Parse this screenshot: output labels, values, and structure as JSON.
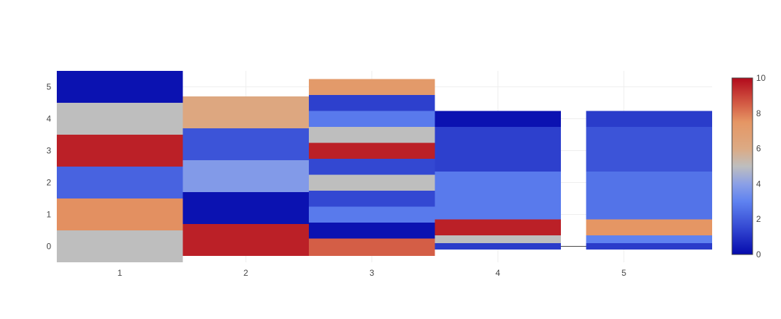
{
  "chart_data": {
    "type": "heatmap",
    "colorscale": "coolwarm",
    "zmin": 0,
    "zmax": 10,
    "x_ticks": [
      "1",
      "2",
      "3",
      "4",
      "5"
    ],
    "y_ticks": [
      "0",
      "1",
      "2",
      "3",
      "4",
      "5"
    ],
    "colorbar_ticks": [
      "0",
      "2",
      "4",
      "6",
      "8",
      "10"
    ],
    "grid": true,
    "columns": [
      {
        "x": 1,
        "x_left": 0.5,
        "x_right": 1.5,
        "cells": [
          {
            "y0": -0.5,
            "y1": 0.5,
            "z": 5
          },
          {
            "y0": 0.5,
            "y1": 1.5,
            "z": 7.6
          },
          {
            "y0": 1.5,
            "y1": 2.5,
            "z": 2.2
          },
          {
            "y0": 2.5,
            "y1": 3.5,
            "z": 9.6
          },
          {
            "y0": 3.5,
            "y1": 4.5,
            "z": 5
          },
          {
            "y0": 4.5,
            "y1": 5.5,
            "z": 0.2
          }
        ]
      },
      {
        "x": 2,
        "x_left": 1.5,
        "x_right": 2.5,
        "cells": [
          {
            "y0": -0.3,
            "y1": 0.7,
            "z": 9.6
          },
          {
            "y0": 0.7,
            "y1": 1.7,
            "z": 0.2
          },
          {
            "y0": 1.7,
            "y1": 2.7,
            "z": 3.8
          },
          {
            "y0": 2.7,
            "y1": 3.7,
            "z": 1.8
          },
          {
            "y0": 3.7,
            "y1": 4.7,
            "z": 6.2
          }
        ]
      },
      {
        "x": 3,
        "x_left": 2.5,
        "x_right": 3.5,
        "cells": [
          {
            "y0": -0.3,
            "y1": 0.25,
            "z": 8.5
          },
          {
            "y0": 0.25,
            "y1": 0.75,
            "z": 0.2
          },
          {
            "y0": 0.75,
            "y1": 1.25,
            "z": 2.8
          },
          {
            "y0": 1.25,
            "y1": 1.75,
            "z": 1.5
          },
          {
            "y0": 1.75,
            "y1": 2.25,
            "z": 5
          },
          {
            "y0": 2.25,
            "y1": 2.75,
            "z": 1.5
          },
          {
            "y0": 2.75,
            "y1": 3.25,
            "z": 9.6
          },
          {
            "y0": 3.25,
            "y1": 3.75,
            "z": 5
          },
          {
            "y0": 3.75,
            "y1": 4.25,
            "z": 2.8
          },
          {
            "y0": 4.25,
            "y1": 4.75,
            "z": 1.3
          },
          {
            "y0": 4.75,
            "y1": 5.25,
            "z": 7.2
          }
        ]
      },
      {
        "x": 4,
        "x_left": 3.5,
        "x_right": 4.5,
        "cells": [
          {
            "y0": -0.1,
            "y1": 0.1,
            "z": 1.2
          },
          {
            "y0": 0.1,
            "y1": 0.35,
            "z": 5
          },
          {
            "y0": 0.35,
            "y1": 0.85,
            "z": 9.6
          },
          {
            "y0": 0.85,
            "y1": 2.35,
            "z": 2.8
          },
          {
            "y0": 2.35,
            "y1": 3.75,
            "z": 1.3
          },
          {
            "y0": 3.75,
            "y1": 4.25,
            "z": 0.2
          }
        ]
      },
      {
        "x": 5,
        "x_left": 4.7,
        "x_right": 5.7,
        "cells": [
          {
            "y0": -0.1,
            "y1": 0.1,
            "z": 1.2
          },
          {
            "y0": 0.1,
            "y1": 0.35,
            "z": 3
          },
          {
            "y0": 0.35,
            "y1": 0.85,
            "z": 7.5
          },
          {
            "y0": 0.85,
            "y1": 2.35,
            "z": 2.6
          },
          {
            "y0": 2.35,
            "y1": 3.75,
            "z": 1.8
          },
          {
            "y0": 3.75,
            "y1": 4.25,
            "z": 1.2
          }
        ]
      }
    ],
    "connector_line": {
      "x0": 4.5,
      "x1": 4.7,
      "y": 0,
      "color": "#444444"
    }
  }
}
